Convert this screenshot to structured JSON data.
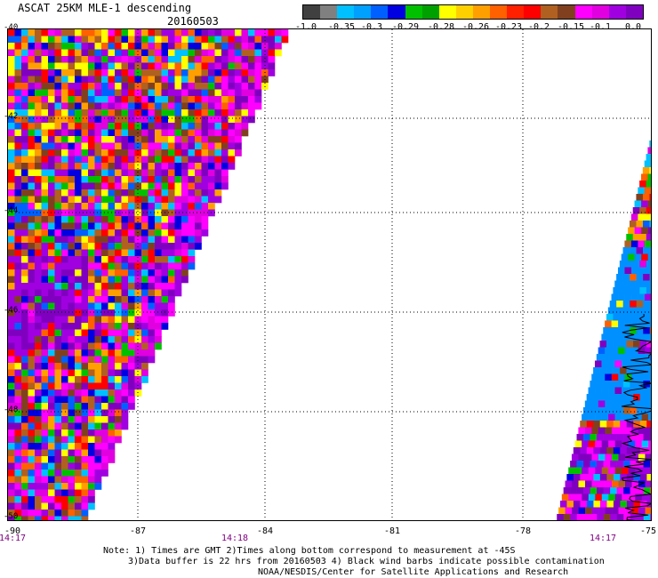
{
  "header": {
    "title": "ASCAT 25KM MLE-1 descending",
    "date": "20160503"
  },
  "colorbar": {
    "colors": [
      "#404040",
      "#808080",
      "#00c0ff",
      "#00a0ff",
      "#0060ff",
      "#0000e0",
      "#00c000",
      "#00a000",
      "#ffff00",
      "#ffd000",
      "#ffa000",
      "#ff6000",
      "#ff2000",
      "#ff0000",
      "#b06020",
      "#804020",
      "#ff00ff",
      "#e000e0",
      "#a000e0",
      "#8000c0"
    ],
    "labels": [
      "-1.0",
      "-0.35",
      "-0.3",
      "-0.29",
      "-0.28",
      "-0.26",
      "-0.23",
      "-0.2",
      "-0.15",
      "-0.1",
      "0.0"
    ]
  },
  "axes": {
    "lat_labels": [
      "-40",
      "-42",
      "-44",
      "-46",
      "-48",
      "-50"
    ],
    "lon_labels": [
      "-90",
      "-87",
      "-84",
      "-81",
      "-78",
      "-75"
    ],
    "time_labels": [
      "14:17",
      "14:18",
      "14:17"
    ]
  },
  "notes": {
    "line1": "Note: 1) Times are GMT 2)Times along bottom correspond to measurement at -45S",
    "line2": "3)Data buffer is 22 hrs from 20160503 4) Black wind barbs indicate possible contamination",
    "line3": "NOAA/NESDIS/Center for Satellite Applications and Research"
  },
  "map": {
    "left_swath_palette": [
      "#8000c0",
      "#a000e0",
      "#ff00ff",
      "#e000e0",
      "#ff0000",
      "#ff6000",
      "#ffff00",
      "#00c000",
      "#0060ff",
      "#00c0ff",
      "#804020",
      "#b06020",
      "#ffa000",
      "#0000e0"
    ],
    "ocean_blue": "#0090ff",
    "coast_color": "#000000"
  }
}
